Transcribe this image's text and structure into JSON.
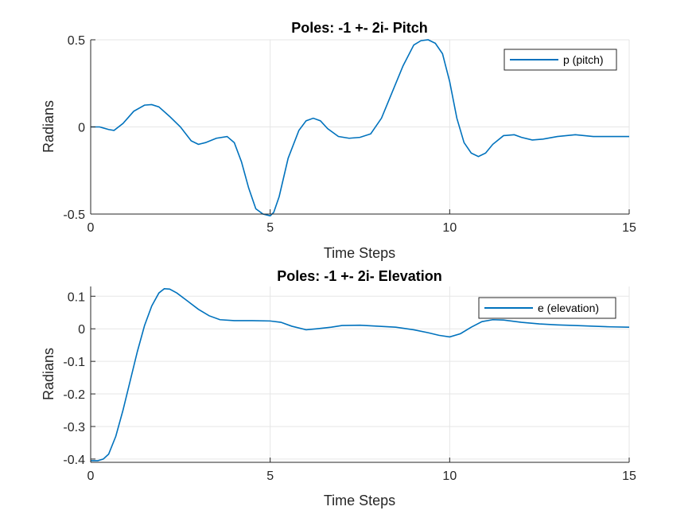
{
  "chart_data": [
    {
      "type": "line",
      "title": "Poles: -1 +- 2i- Pitch",
      "xlabel": "Time Steps",
      "ylabel": "Radians",
      "xlim": [
        0,
        15
      ],
      "ylim": [
        -0.5,
        0.5
      ],
      "xticks": [
        0,
        5,
        10,
        15
      ],
      "xtick_labels": [
        "0",
        "5",
        "10",
        "15"
      ],
      "yticks": [
        -0.5,
        0,
        0.5
      ],
      "ytick_labels": [
        "-0.5",
        "0",
        "0.5"
      ],
      "grid": true,
      "legend_position": "top-right",
      "series": [
        {
          "name": "p (pitch)",
          "color": "#0072bd",
          "x": [
            0,
            0.25,
            0.5,
            0.65,
            0.9,
            1.2,
            1.5,
            1.7,
            1.9,
            2.2,
            2.5,
            2.8,
            3.0,
            3.2,
            3.5,
            3.8,
            4.0,
            4.2,
            4.4,
            4.6,
            4.8,
            5.0,
            5.1,
            5.25,
            5.5,
            5.8,
            6.0,
            6.2,
            6.4,
            6.6,
            6.9,
            7.2,
            7.5,
            7.8,
            8.1,
            8.4,
            8.7,
            9.0,
            9.2,
            9.4,
            9.6,
            9.8,
            10.0,
            10.2,
            10.4,
            10.6,
            10.8,
            11.0,
            11.2,
            11.5,
            11.8,
            12.0,
            12.3,
            12.6,
            13.0,
            13.5,
            14.0,
            14.5,
            15.0
          ],
          "values": [
            0.0,
            0.0,
            -0.015,
            -0.02,
            0.02,
            0.09,
            0.125,
            0.128,
            0.115,
            0.06,
            0.0,
            -0.08,
            -0.1,
            -0.09,
            -0.065,
            -0.055,
            -0.09,
            -0.2,
            -0.35,
            -0.47,
            -0.5,
            -0.51,
            -0.49,
            -0.4,
            -0.18,
            -0.02,
            0.035,
            0.05,
            0.035,
            -0.01,
            -0.055,
            -0.065,
            -0.06,
            -0.04,
            0.05,
            0.2,
            0.35,
            0.47,
            0.495,
            0.5,
            0.48,
            0.42,
            0.26,
            0.05,
            -0.09,
            -0.15,
            -0.17,
            -0.15,
            -0.1,
            -0.05,
            -0.045,
            -0.06,
            -0.075,
            -0.07,
            -0.055,
            -0.045,
            -0.055,
            -0.055,
            -0.055
          ]
        }
      ]
    },
    {
      "type": "line",
      "title": "Poles: -1 +- 2i- Elevation",
      "xlabel": "Time Steps",
      "ylabel": "Radians",
      "xlim": [
        0,
        15
      ],
      "ylim": [
        -0.41,
        0.13
      ],
      "xticks": [
        0,
        5,
        10,
        15
      ],
      "xtick_labels": [
        "0",
        "5",
        "10",
        "15"
      ],
      "yticks": [
        -0.4,
        -0.3,
        -0.2,
        -0.1,
        0,
        0.1
      ],
      "ytick_labels": [
        "-0.4",
        "-0.3",
        "-0.2",
        "-0.1",
        "0",
        "0.1"
      ],
      "grid": true,
      "legend_position": "top-right",
      "series": [
        {
          "name": "e (elevation)",
          "color": "#0072bd",
          "x": [
            0,
            0.2,
            0.35,
            0.5,
            0.7,
            0.9,
            1.1,
            1.3,
            1.5,
            1.7,
            1.9,
            2.05,
            2.2,
            2.4,
            2.7,
            3.0,
            3.3,
            3.6,
            4.0,
            4.5,
            5.0,
            5.3,
            5.6,
            6.0,
            6.3,
            6.7,
            7.0,
            7.5,
            8.0,
            8.5,
            9.0,
            9.4,
            9.7,
            10.0,
            10.3,
            10.6,
            10.9,
            11.2,
            11.5,
            12.0,
            12.5,
            13.0,
            13.5,
            14.0,
            14.5,
            15.0
          ],
          "values": [
            -0.405,
            -0.405,
            -0.4,
            -0.385,
            -0.33,
            -0.25,
            -0.16,
            -0.07,
            0.01,
            0.07,
            0.11,
            0.123,
            0.122,
            0.11,
            0.085,
            0.06,
            0.04,
            0.028,
            0.025,
            0.025,
            0.024,
            0.02,
            0.008,
            -0.003,
            0.0,
            0.005,
            0.01,
            0.011,
            0.008,
            0.005,
            -0.003,
            -0.012,
            -0.02,
            -0.025,
            -0.015,
            0.005,
            0.022,
            0.028,
            0.027,
            0.02,
            0.015,
            0.012,
            0.01,
            0.008,
            0.006,
            0.005
          ]
        }
      ]
    }
  ]
}
